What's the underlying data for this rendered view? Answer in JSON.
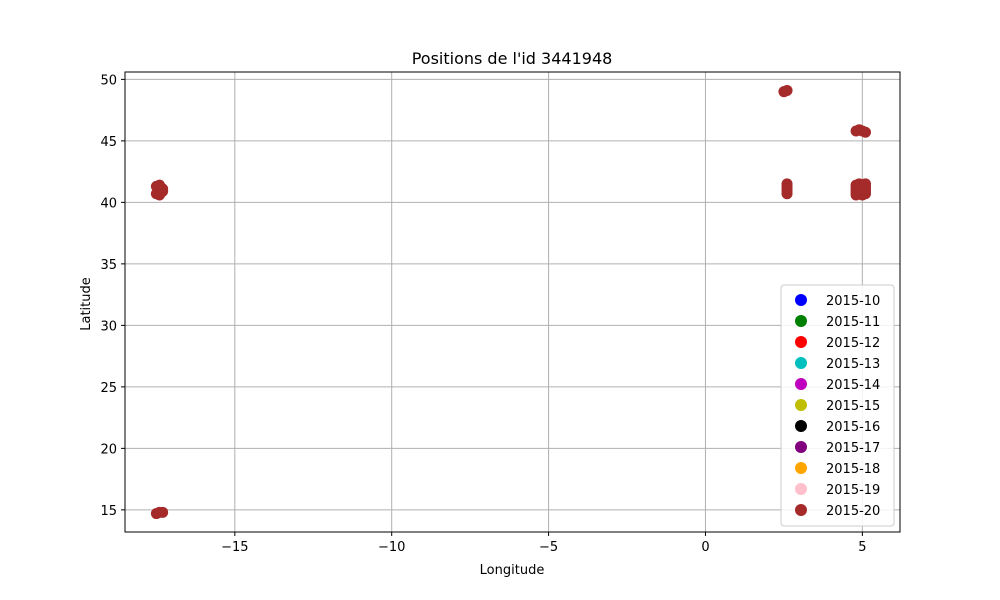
{
  "chart_data": {
    "type": "scatter",
    "title": "Positions de l'id 3441948",
    "xlabel": "Longitude",
    "ylabel": "Latitude",
    "xlim": [
      -18.5,
      6.2
    ],
    "ylim": [
      13.2,
      50.6
    ],
    "xticks": [
      -15,
      -10,
      -5,
      0,
      5
    ],
    "xtick_labels": [
      "−15",
      "−10",
      "−5",
      "0",
      "5"
    ],
    "yticks": [
      15,
      20,
      25,
      30,
      35,
      40,
      45,
      50
    ],
    "ytick_labels": [
      "15",
      "20",
      "25",
      "30",
      "35",
      "40",
      "45",
      "50"
    ],
    "grid": true,
    "legend_position": "lower-right",
    "series": [
      {
        "name": "2015-10",
        "color": "#0000ff",
        "points": []
      },
      {
        "name": "2015-11",
        "color": "#008000",
        "points": []
      },
      {
        "name": "2015-12",
        "color": "#ff0000",
        "points": []
      },
      {
        "name": "2015-13",
        "color": "#00bfbf",
        "points": []
      },
      {
        "name": "2015-14",
        "color": "#bf00bf",
        "points": []
      },
      {
        "name": "2015-15",
        "color": "#bfbf00",
        "points": []
      },
      {
        "name": "2015-16",
        "color": "#000000",
        "points": []
      },
      {
        "name": "2015-17",
        "color": "#800080",
        "points": []
      },
      {
        "name": "2015-18",
        "color": "#ffa500",
        "points": []
      },
      {
        "name": "2015-19",
        "color": "#ffc0cb",
        "points": []
      },
      {
        "name": "2015-20",
        "color": "#a52a2a",
        "points": [
          [
            -17.4,
            40.6
          ],
          [
            -17.4,
            40.8
          ],
          [
            -17.4,
            41.0
          ],
          [
            -17.4,
            41.2
          ],
          [
            -17.4,
            41.4
          ],
          [
            -17.5,
            40.7
          ],
          [
            -17.3,
            41.1
          ],
          [
            -17.3,
            40.9
          ],
          [
            -17.5,
            41.3
          ],
          [
            -17.4,
            14.8
          ],
          [
            -17.5,
            14.7
          ],
          [
            -17.3,
            14.8
          ],
          [
            2.6,
            49.1
          ],
          [
            2.5,
            49.0
          ],
          [
            2.6,
            40.7
          ],
          [
            2.6,
            40.9
          ],
          [
            2.6,
            41.1
          ],
          [
            2.6,
            41.3
          ],
          [
            2.6,
            41.5
          ],
          [
            4.8,
            45.8
          ],
          [
            5.0,
            45.8
          ],
          [
            5.1,
            45.7
          ],
          [
            4.9,
            45.9
          ],
          [
            4.8,
            40.6
          ],
          [
            4.8,
            40.8
          ],
          [
            4.8,
            41.0
          ],
          [
            4.8,
            41.2
          ],
          [
            4.8,
            41.4
          ],
          [
            5.0,
            40.6
          ],
          [
            5.0,
            40.8
          ],
          [
            5.0,
            41.0
          ],
          [
            5.0,
            41.2
          ],
          [
            5.0,
            41.4
          ],
          [
            5.1,
            40.7
          ],
          [
            5.1,
            40.9
          ],
          [
            5.1,
            41.1
          ],
          [
            5.1,
            41.3
          ],
          [
            5.1,
            41.5
          ],
          [
            4.9,
            40.7
          ],
          [
            4.9,
            41.5
          ]
        ]
      }
    ]
  }
}
